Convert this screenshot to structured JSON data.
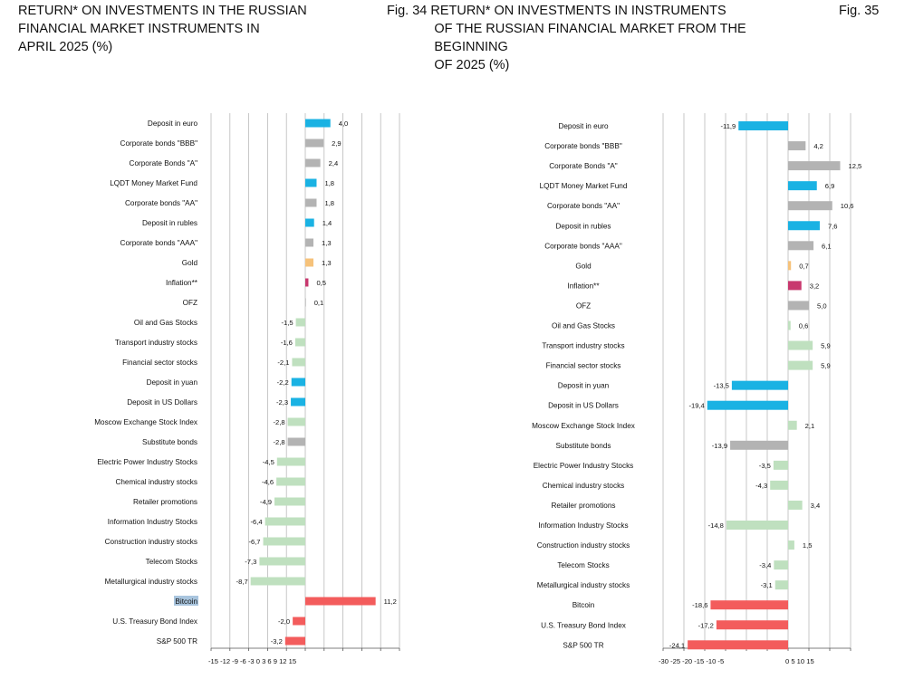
{
  "headers": {
    "left": "RETURN* ON INVESTMENTS IN THE RUSSIAN\nFINANCIAL MARKET INSTRUMENTS IN\nAPRIL 2025 (%)",
    "middle": "Fig. 34 RETURN* ON INVESTMENTS IN INSTRUMENTS\n             OF THE RUSSIAN FINANCIAL MARKET FROM THE\n             BEGINNING\n             OF 2025 (%)",
    "right": "Fig. 35"
  },
  "colors": {
    "blue": "#1ab2e3",
    "gray": "#b3b3b3",
    "lightgreen": "#bfe0bf",
    "orange": "#f6c27a",
    "magenta": "#c8386e",
    "red": "#f35c5c",
    "grid": "#b9b9b9",
    "highlight": "#a9c5de"
  },
  "chart_data": [
    {
      "type": "bar",
      "orientation": "horizontal",
      "xlim": [
        -15,
        15
      ],
      "tick_labels": "-15 -12 -9 -6 -3 0 3 6 9 12 15",
      "categories": [
        "Deposit in euro",
        "Corporate bonds \"BBB\"",
        "Corporate Bonds \"A\"",
        "LQDT Money Market Fund",
        "Corporate bonds \"AA\"",
        "Deposit in rubles",
        "Corporate bonds \"AAA\"",
        "Gold",
        "Inflation**",
        "OFZ",
        "Oil and Gas Stocks",
        "Transport industry stocks",
        "Financial sector stocks",
        "Deposit in yuan",
        "Deposit in US Dollars",
        "Moscow Exchange Stock Index",
        "Substitute bonds",
        "Electric Power Industry Stocks",
        "Chemical industry stocks",
        "Retailer promotions",
        "Information Industry Stocks",
        "Construction industry stocks",
        "Telecom Stocks",
        "Metallurgical industry stocks",
        "Bitcoin",
        "U.S. Treasury Bond Index",
        "S&P 500 TR"
      ],
      "values": [
        4.0,
        2.9,
        2.4,
        1.8,
        1.8,
        1.4,
        1.3,
        1.3,
        0.5,
        0.1,
        -1.5,
        -1.6,
        -2.1,
        -2.2,
        -2.3,
        -2.8,
        -2.8,
        -4.5,
        -4.6,
        -4.9,
        -6.4,
        -6.7,
        -7.3,
        -8.7,
        11.2,
        -2.0,
        -3.2
      ],
      "value_labels": [
        "4,0",
        "2,9",
        "2,4",
        "1,8",
        "1,8",
        "1,4",
        "1,3",
        "1,3",
        "0,5",
        "0,1",
        "-1,5",
        "-1,6",
        "-2,1",
        "-2,2",
        "-2,3",
        "-2,8",
        "-2,8",
        "-4,5",
        "-4,6",
        "-4,9",
        "-6,4",
        "-6,7",
        "-7,3",
        "-8,7",
        "11,2",
        "-2,0",
        "-3,2"
      ],
      "bar_colors": [
        "blue",
        "gray",
        "gray",
        "blue",
        "gray",
        "blue",
        "gray",
        "orange",
        "magenta",
        "gray",
        "lightgreen",
        "lightgreen",
        "lightgreen",
        "blue",
        "blue",
        "lightgreen",
        "gray",
        "lightgreen",
        "lightgreen",
        "lightgreen",
        "lightgreen",
        "lightgreen",
        "lightgreen",
        "lightgreen",
        "red",
        "red",
        "red"
      ],
      "highlighted_category": "Bitcoin",
      "grid": true
    },
    {
      "type": "bar",
      "orientation": "horizontal",
      "xlim": [
        -30,
        15
      ],
      "tick_labels_left": "-30 -25 -20 -15 -10 -5",
      "tick_labels_right": "0 5 10 15",
      "categories": [
        "Deposit in euro",
        "Corporate bonds \"BBB\"",
        "Corporate Bonds \"A\"",
        "LQDT Money Market Fund",
        "Corporate bonds \"AA\"",
        "Deposit in rubles",
        "Corporate bonds \"AAA\"",
        "Gold",
        "Inflation**",
        "OFZ",
        "Oil and Gas Stocks",
        "Transport industry stocks",
        "Financial sector stocks",
        "Deposit in yuan",
        "Deposit in US Dollars",
        "Moscow Exchange Stock Index",
        "Substitute bonds",
        "Electric Power Industry Stocks",
        "Chemical industry stocks",
        "Retailer promotions",
        "Information Industry Stocks",
        "Construction industry stocks",
        "Telecom Stocks",
        "Metallurgical industry stocks",
        "Bitcoin",
        "U.S. Treasury Bond Index",
        "S&P 500 TR"
      ],
      "values": [
        -11.9,
        4.2,
        12.5,
        6.9,
        10.6,
        7.6,
        6.1,
        0.7,
        3.2,
        5.0,
        0.6,
        5.9,
        5.9,
        -13.5,
        -19.4,
        2.1,
        -13.9,
        -3.5,
        -4.3,
        3.4,
        -14.8,
        1.5,
        -3.4,
        -3.1,
        -18.6,
        -17.2,
        -24.1
      ],
      "value_labels": [
        "-11,9",
        "4,2",
        "12,5",
        "6,9",
        "10,6",
        "7,6",
        "6,1",
        "0,7",
        "3,2",
        "5,0",
        "0,6",
        "5,9",
        "5,9",
        "-13,5",
        "-19,4",
        "2,1",
        "-13,9",
        "-3,5",
        "-4,3",
        "3,4",
        "-14,8",
        "1,5",
        "-3,4",
        "-3,1",
        "-18,6",
        "-17,2",
        "-24,1"
      ],
      "bar_colors": [
        "blue",
        "gray",
        "gray",
        "blue",
        "gray",
        "blue",
        "gray",
        "orange",
        "magenta",
        "gray",
        "lightgreen",
        "lightgreen",
        "lightgreen",
        "blue",
        "blue",
        "lightgreen",
        "gray",
        "lightgreen",
        "lightgreen",
        "lightgreen",
        "lightgreen",
        "lightgreen",
        "lightgreen",
        "lightgreen",
        "red",
        "red",
        "red"
      ],
      "grid": true
    }
  ]
}
